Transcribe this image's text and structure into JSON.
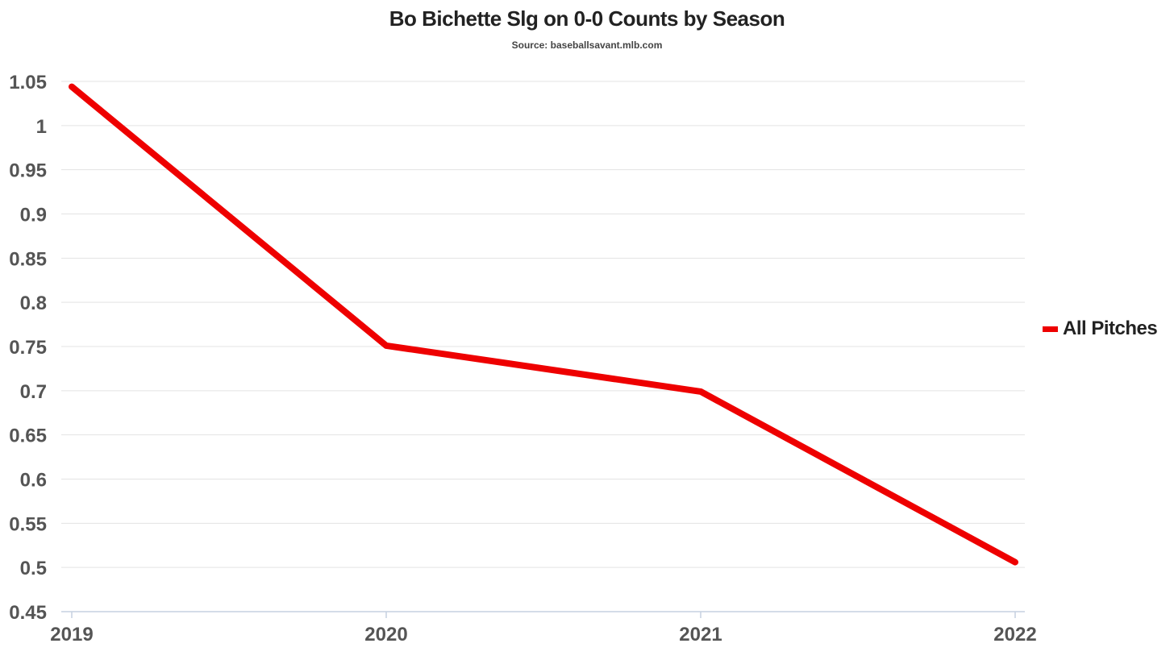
{
  "chart_data": {
    "type": "line",
    "title": "Bo Bichette Slg on 0-0 Counts by Season",
    "subtitle": "Source: baseballsavant.mlb.com",
    "xlabel": "",
    "ylabel": "",
    "categories": [
      "2019",
      "2020",
      "2021",
      "2022"
    ],
    "series": [
      {
        "name": "All Pitches",
        "values": [
          1.044,
          0.751,
          0.699,
          0.506
        ],
        "color": "#ee0000"
      }
    ],
    "ylim": [
      0.45,
      1.05
    ],
    "yticks": [
      "1.05",
      "1",
      "0.95",
      "0.9",
      "0.85",
      "0.8",
      "0.75",
      "0.7",
      "0.65",
      "0.6",
      "0.55",
      "0.5",
      "0.45"
    ],
    "grid": true,
    "legend_position": "right"
  },
  "colors": {
    "series": "#ee0000",
    "grid": "#e3e3e3",
    "axis": "#c5d1e0",
    "tick_text": "#555555",
    "title_text": "#222222"
  }
}
